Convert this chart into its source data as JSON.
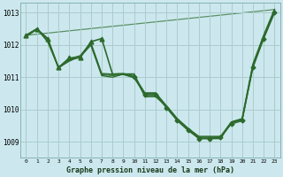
{
  "xlabel": "Graphe pression niveau de la mer (hPa)",
  "background_color": "#cce8ee",
  "grid_color": "#aacccc",
  "line_color": "#2d6a2d",
  "ylim": [
    1008.5,
    1013.3
  ],
  "xlim": [
    -0.5,
    23.5
  ],
  "yticks": [
    1009,
    1010,
    1011,
    1012,
    1013
  ],
  "xticks": [
    0,
    1,
    2,
    3,
    4,
    5,
    6,
    7,
    8,
    9,
    10,
    11,
    12,
    13,
    14,
    15,
    16,
    17,
    18,
    19,
    20,
    21,
    22,
    23
  ],
  "series": [
    {
      "x": [
        0,
        1,
        2,
        3,
        4,
        5,
        6,
        7,
        8,
        9,
        10,
        11,
        12,
        13,
        14,
        15,
        16,
        17,
        18,
        19,
        20,
        21,
        22,
        23
      ],
      "y": [
        1012.3,
        1012.5,
        1012.2,
        1011.3,
        1011.6,
        1011.6,
        1012.1,
        1012.2,
        1011.1,
        1011.1,
        1011.1,
        1010.4,
        1010.4,
        1010.1,
        1009.7,
        1009.4,
        1009.1,
        1009.1,
        1009.1,
        1009.6,
        1009.7,
        1011.4,
        1012.3,
        1013.1
      ],
      "marker": "^",
      "linewidth": 1.2,
      "markersize": 3.5,
      "markevery": [
        0,
        1,
        2,
        3,
        4,
        5,
        6,
        7
      ]
    },
    {
      "x": [
        0,
        1,
        2,
        3,
        4,
        5,
        6,
        7,
        8,
        9,
        10,
        11,
        12,
        13,
        14,
        15,
        16,
        17,
        18,
        19,
        20,
        21,
        22,
        23
      ],
      "y": [
        1012.3,
        1012.5,
        1012.1,
        1011.3,
        1011.5,
        1011.65,
        1012.0,
        1011.05,
        1011.0,
        1011.1,
        1011.0,
        1010.45,
        1010.45,
        1010.05,
        1009.65,
        1009.35,
        1009.1,
        1009.1,
        1009.15,
        1009.55,
        1009.65,
        1011.3,
        1012.2,
        1013.0
      ],
      "marker": "D",
      "linewidth": 1.0,
      "markersize": 2.5,
      "markevery": [
        10,
        11,
        12,
        13,
        14,
        15,
        16,
        17,
        18,
        19,
        20,
        21,
        22,
        23
      ]
    },
    {
      "x": [
        0,
        1,
        2,
        3,
        4,
        5,
        6,
        7,
        8,
        9,
        10,
        11,
        12,
        13,
        14,
        15,
        16,
        17,
        18,
        19,
        20,
        21,
        22,
        23
      ],
      "y": [
        1012.25,
        1012.48,
        1012.15,
        1011.28,
        1011.52,
        1011.62,
        1012.0,
        1011.08,
        1011.05,
        1011.08,
        1010.98,
        1010.48,
        1010.48,
        1010.08,
        1009.68,
        1009.38,
        1009.12,
        1009.12,
        1009.12,
        1009.58,
        1009.68,
        1011.32,
        1012.22,
        1013.02
      ],
      "marker": null,
      "linewidth": 0.8,
      "markersize": 0,
      "markevery": []
    },
    {
      "x": [
        0,
        1,
        2,
        3,
        4,
        5,
        6,
        7,
        8,
        9,
        10,
        11,
        12,
        13,
        14,
        15,
        16,
        17,
        18,
        19,
        20,
        21,
        22,
        23
      ],
      "y": [
        1012.28,
        1012.5,
        1012.18,
        1011.3,
        1011.55,
        1011.63,
        1012.05,
        1011.1,
        1011.08,
        1011.1,
        1011.02,
        1010.5,
        1010.5,
        1010.1,
        1009.7,
        1009.4,
        1009.15,
        1009.15,
        1009.15,
        1009.6,
        1009.7,
        1011.35,
        1012.25,
        1013.05
      ],
      "marker": null,
      "linewidth": 0.8,
      "markersize": 0,
      "markevery": []
    },
    {
      "x": [
        0,
        1,
        2,
        3,
        4,
        5,
        6,
        7,
        8,
        9,
        10,
        11,
        12,
        13,
        14,
        15,
        16,
        17,
        18,
        19,
        20,
        21,
        22,
        23
      ],
      "y": [
        1012.3,
        1012.5,
        1012.2,
        1011.3,
        1011.58,
        1011.67,
        1012.08,
        1011.12,
        1011.1,
        1011.12,
        1011.05,
        1010.52,
        1010.52,
        1010.12,
        1009.72,
        1009.42,
        1009.17,
        1009.17,
        1009.17,
        1009.62,
        1009.72,
        1011.38,
        1012.28,
        1013.08
      ],
      "marker": null,
      "linewidth": 0.8,
      "markersize": 0,
      "markevery": []
    }
  ],
  "diagonal_line": {
    "x": [
      0,
      23
    ],
    "y": [
      1012.3,
      1013.1
    ],
    "linewidth": 0.9
  }
}
